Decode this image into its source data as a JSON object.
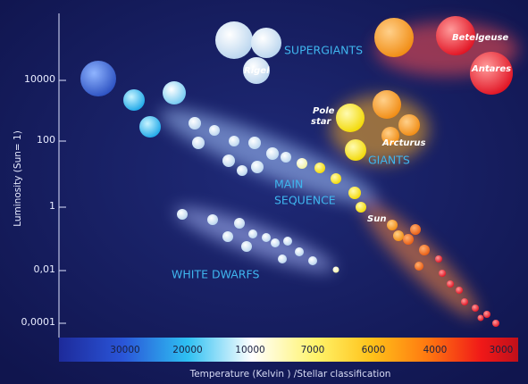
{
  "y_axis": {
    "title": "Luminosity (Sun= 1)",
    "ticks": [
      "10000",
      "100",
      "1",
      "0,01",
      "0,0001"
    ]
  },
  "x_axis": {
    "title": "Temperature (Kelvin ) /Stellar classification",
    "ticks": [
      "30000",
      "20000",
      "10000",
      "7000",
      "6000",
      "4000",
      "3000"
    ]
  },
  "regions": {
    "supergiants": "SUPERGIANTS",
    "main_sequence": [
      "MAIN",
      "SEQUENCE"
    ],
    "giants": "GIANTS",
    "white_dwarfs": "WHITE DWARFS"
  },
  "stars": {
    "rigel": "Rigel",
    "pole_star": [
      "Pole",
      "star"
    ],
    "arcturus": "Arcturus",
    "sun": "Sun",
    "betelgeuse": "Betelgeuse",
    "antares": "Antares"
  }
}
